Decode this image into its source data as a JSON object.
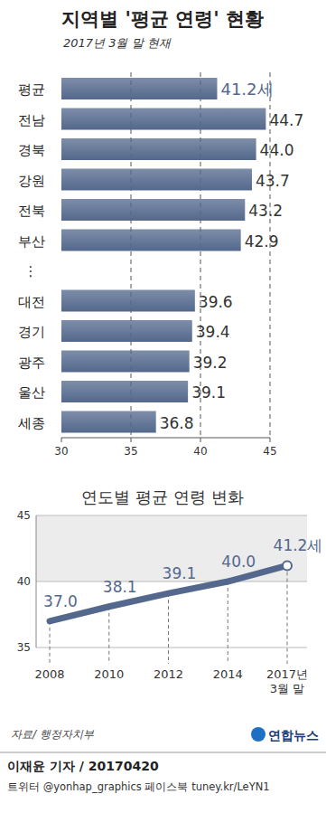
{
  "chart_data": [
    {
      "type": "bar",
      "title": "지역별 '평균 연령' 현황",
      "subtitle": "2017년 3월 말 현재",
      "orientation": "horizontal",
      "categories": [
        "평균",
        "전남",
        "경북",
        "강원",
        "전북",
        "부산",
        "⋮",
        "대전",
        "경기",
        "광주",
        "울산",
        "세종"
      ],
      "values": [
        41.2,
        44.7,
        44.0,
        43.7,
        43.2,
        42.9,
        null,
        39.6,
        39.4,
        39.2,
        39.1,
        36.8
      ],
      "value_labels": [
        "41.2세",
        "44.7",
        "44.0",
        "43.7",
        "43.2",
        "42.9",
        null,
        "39.6",
        "39.4",
        "39.2",
        "39.1",
        "36.8"
      ],
      "data_labels": true,
      "xlim": [
        30,
        45
      ],
      "xticks": [
        30,
        35,
        40,
        45
      ],
      "grid": true,
      "color": "#53688c"
    },
    {
      "type": "line",
      "title": "연도별 평균 연령 변화",
      "categories": [
        "2008",
        "2010",
        "2012",
        "2014",
        "2017년 3월 말"
      ],
      "values": [
        37.0,
        38.1,
        39.1,
        40.0,
        41.2
      ],
      "value_labels": [
        "37.0",
        "38.1",
        "39.1",
        "40.0",
        "41.2세"
      ],
      "data_labels": true,
      "ylim": [
        35,
        45
      ],
      "yticks": [
        35,
        40,
        45
      ],
      "grid": true,
      "color": "#53688c",
      "marker": "circle"
    }
  ],
  "source": "자료/ 행정자치부",
  "logo": "연합뉴스",
  "byline": "이재윤 기자 / 20170420",
  "social": "트위터 @yonhap_graphics  페이스북 tuney.kr/LeYN1"
}
